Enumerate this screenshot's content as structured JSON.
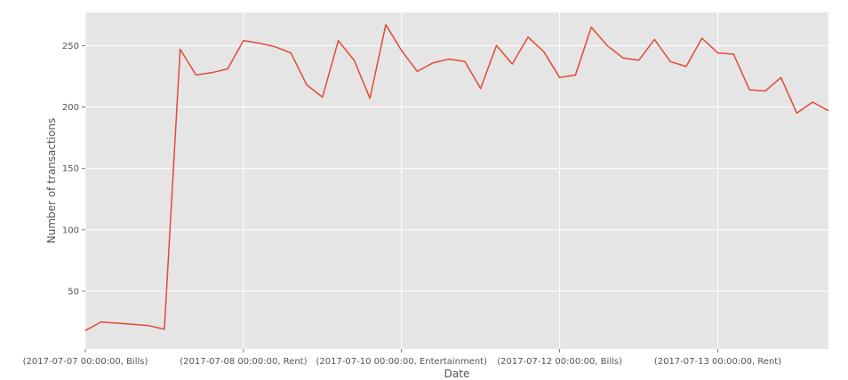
{
  "chart_data": {
    "type": "line",
    "title": "",
    "xlabel": "Date",
    "ylabel": "Number of transactions",
    "ylim": [
      3,
      277
    ],
    "xlim": [
      0,
      47
    ],
    "grid": true,
    "line_color": "#E24A33",
    "background_color": "#E5E5E5",
    "grid_color": "#FFFFFF",
    "yticks": [
      50,
      100,
      150,
      200,
      250
    ],
    "xticks": [
      {
        "pos": 0,
        "label": "(2017-07-07 00:00:00, Bills)"
      },
      {
        "pos": 10,
        "label": "(2017-07-08 00:00:00, Rent)"
      },
      {
        "pos": 20,
        "label": "(2017-07-10 00:00:00, Entertainment)"
      },
      {
        "pos": 30,
        "label": "(2017-07-12 00:00:00, Bills)"
      },
      {
        "pos": 40,
        "label": "(2017-07-13 00:00:00, Rent)"
      }
    ],
    "series": [
      {
        "name": "",
        "values": [
          18,
          25,
          24,
          23,
          22,
          19,
          247,
          226,
          228,
          231,
          254,
          252,
          249,
          244,
          218,
          208,
          254,
          238,
          207,
          267,
          246,
          229,
          236,
          239,
          237,
          215,
          250,
          235,
          257,
          245,
          224,
          226,
          265,
          250,
          240,
          238,
          255,
          237,
          233,
          256,
          244,
          243,
          214,
          213,
          224,
          195,
          204,
          197
        ]
      }
    ]
  }
}
